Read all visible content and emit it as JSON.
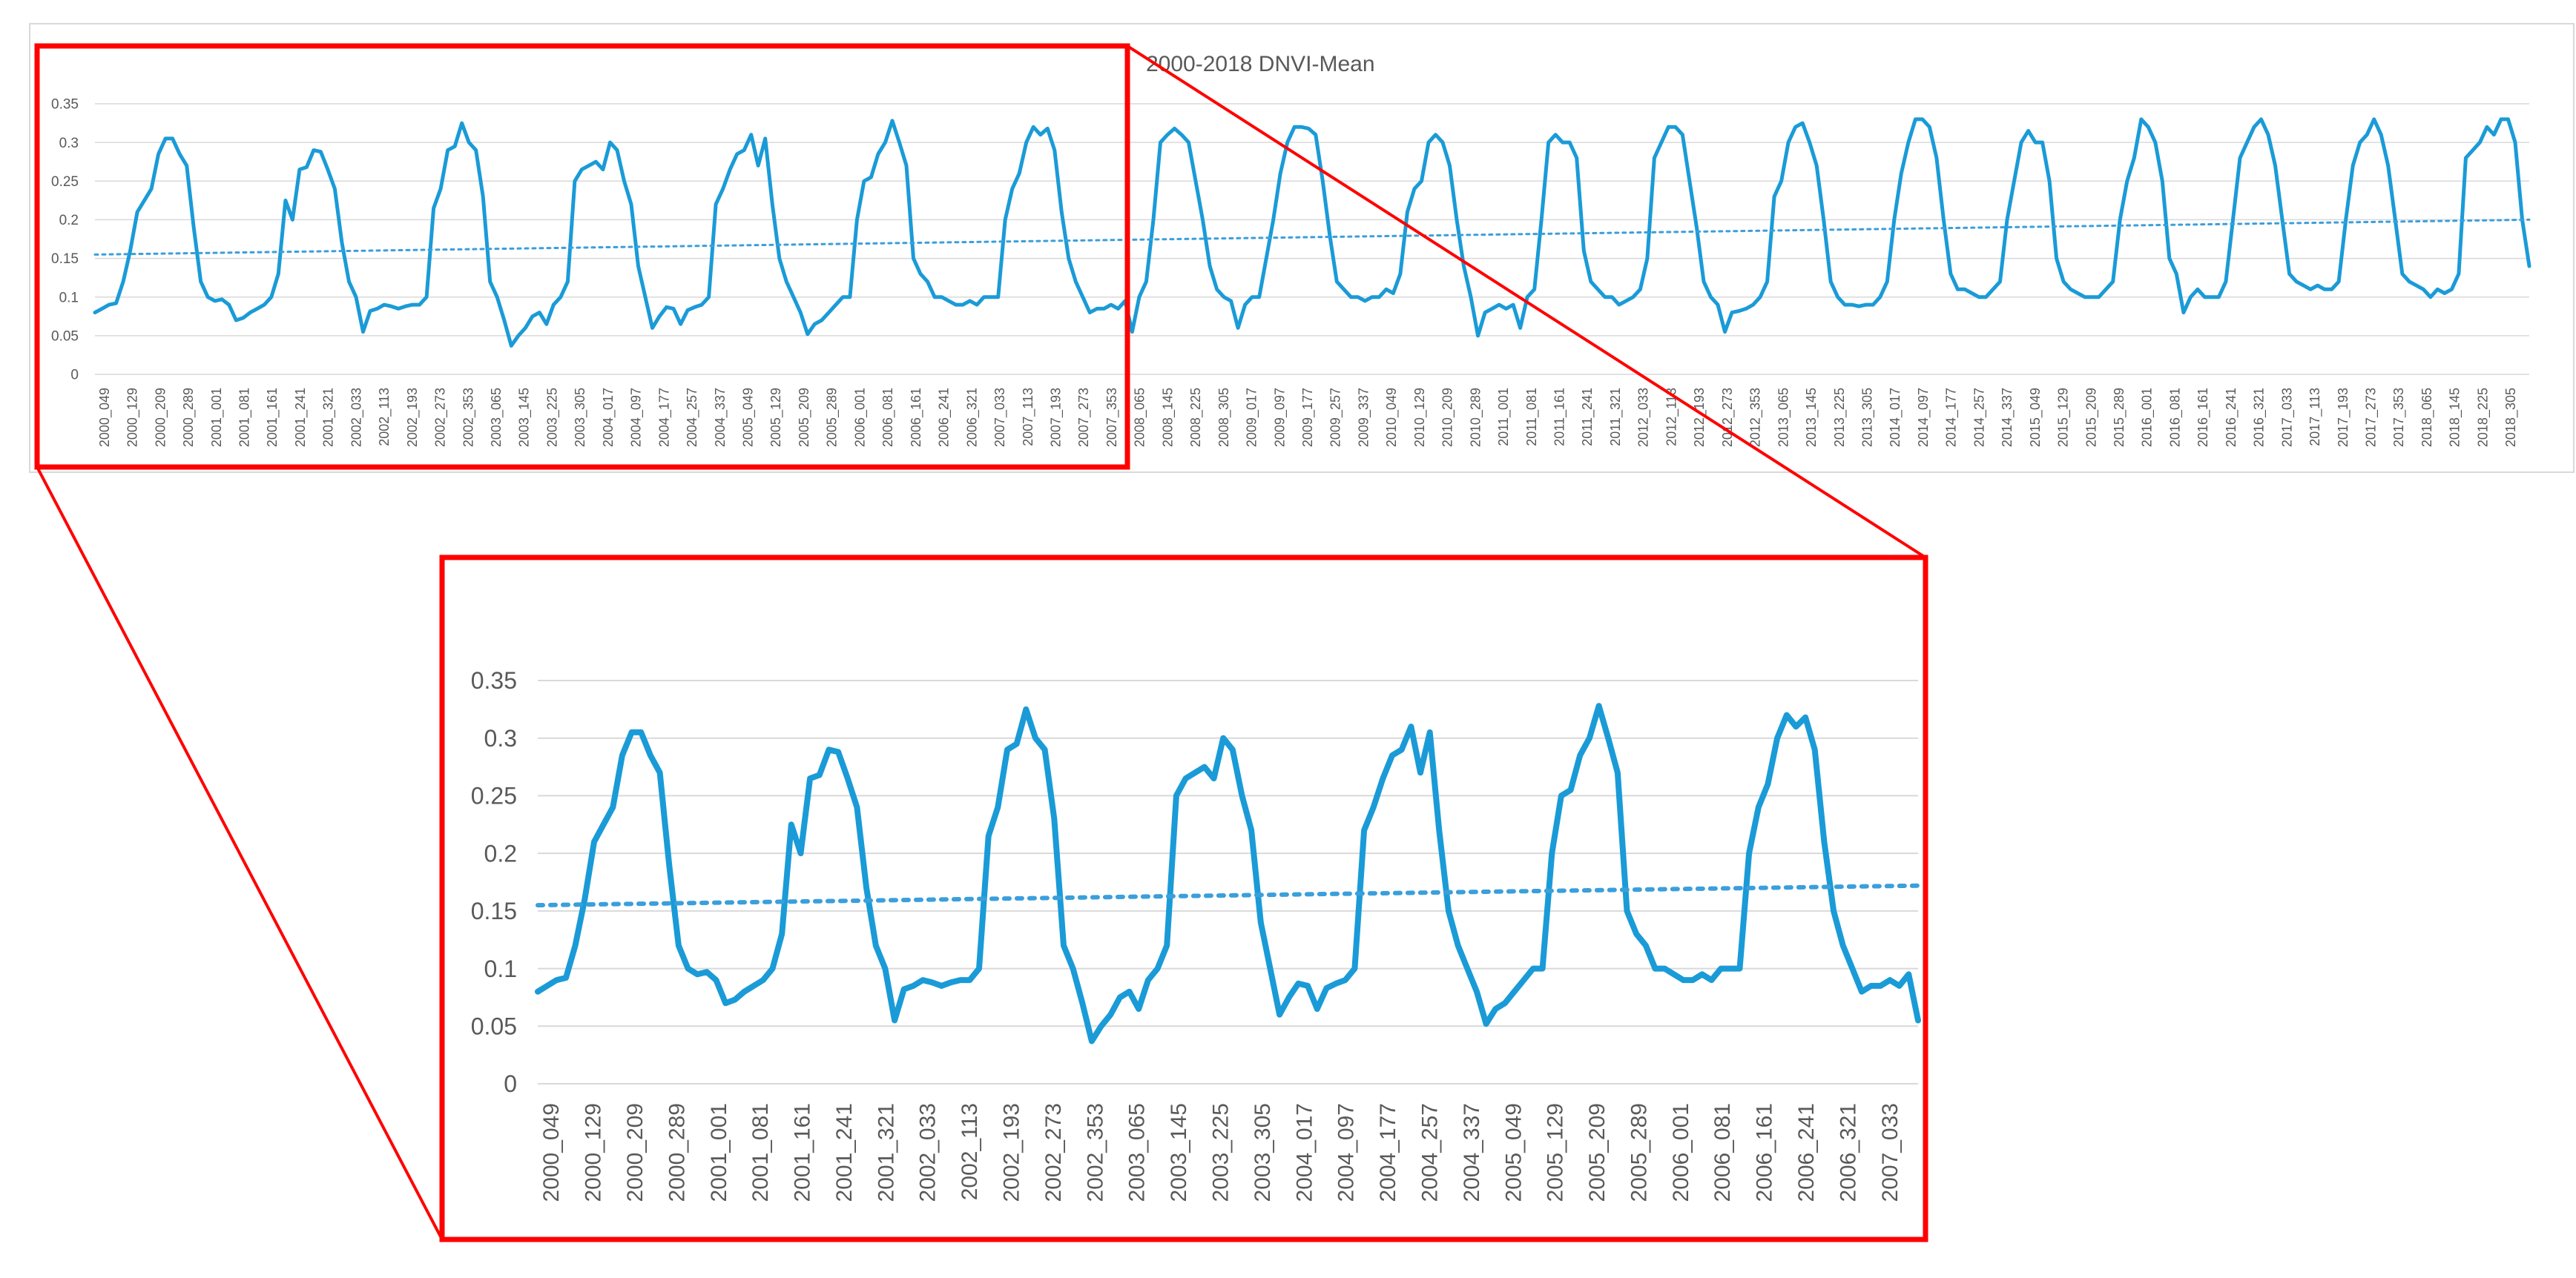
{
  "colors": {
    "series": "#1a9bd7",
    "trend": "#3a9fdb",
    "highlight": "#ff0000",
    "grid": "#d9d9d9",
    "text": "#595959"
  },
  "chart_data": [
    {
      "id": "overview",
      "type": "line",
      "title": "2000-2018 DNVI-Mean",
      "ylim": [
        0,
        0.35
      ],
      "yticks": [
        "0",
        "0.05",
        "0.1",
        "0.15",
        "0.2",
        "0.25",
        "0.3",
        "0.35"
      ],
      "grid": true,
      "legend": "none",
      "x_start": "2000_049",
      "x_end": "2018_305",
      "x_tick_labels": [
        "2000_049",
        "2000_129",
        "2000_209",
        "2000_289",
        "2001_001",
        "2001_081",
        "2001_161",
        "2001_241",
        "2001_321",
        "2002_033",
        "2002_113",
        "2002_193",
        "2002_273",
        "2002_353",
        "2003_065",
        "2003_145",
        "2003_225",
        "2003_305",
        "2004_017",
        "2004_097",
        "2004_177",
        "2004_257",
        "2004_337",
        "2005_049",
        "2005_129",
        "2005_209",
        "2005_289",
        "2006_001",
        "2006_081",
        "2006_161",
        "2006_241",
        "2006_321",
        "2007_033",
        "2007_113",
        "2007_193",
        "2007_273",
        "2007_353",
        "2008_065",
        "2008_145",
        "2008_225",
        "2008_305",
        "2009_017",
        "2009_097",
        "2009_177",
        "2009_257",
        "2009_337",
        "2010_049",
        "2010_129",
        "2010_209",
        "2010_289",
        "2011_001",
        "2011_081",
        "2011_161",
        "2011_241",
        "2011_321",
        "2012_033",
        "2012_113",
        "2012_193",
        "2012_273",
        "2012_353",
        "2013_065",
        "2013_145",
        "2013_225",
        "2013_305",
        "2014_017",
        "2014_097",
        "2014_177",
        "2014_257",
        "2014_337",
        "2015_049",
        "2015_129",
        "2015_209",
        "2015_289",
        "2016_001",
        "2016_081",
        "2016_161",
        "2016_241",
        "2016_321",
        "2017_033",
        "2017_113",
        "2017_193",
        "2017_273",
        "2017_353",
        "2018_065",
        "2018_145",
        "2018_225",
        "2018_305"
      ],
      "series": [
        {
          "values": [
            0.08,
            0.085,
            0.09,
            0.092,
            0.12,
            0.16,
            0.21,
            0.225,
            0.24,
            0.285,
            0.305,
            0.305,
            0.285,
            0.27,
            0.19,
            0.12,
            0.1,
            0.095,
            0.097,
            0.09,
            0.07,
            0.073,
            0.08,
            0.085,
            0.09,
            0.1,
            0.13,
            0.225,
            0.2,
            0.265,
            0.268,
            0.29,
            0.288,
            0.265,
            0.24,
            0.17,
            0.12,
            0.1,
            0.055,
            0.082,
            0.085,
            0.09,
            0.088,
            0.085,
            0.088,
            0.09,
            0.09,
            0.1,
            0.215,
            0.24,
            0.29,
            0.295,
            0.325,
            0.3,
            0.29,
            0.23,
            0.12,
            0.1,
            0.07,
            0.037,
            0.05,
            0.06,
            0.075,
            0.08,
            0.065,
            0.09,
            0.1,
            0.12,
            0.25,
            0.265,
            0.27,
            0.275,
            0.265,
            0.3,
            0.29,
            0.25,
            0.22,
            0.14,
            0.1,
            0.06,
            0.075,
            0.087,
            0.085,
            0.065,
            0.083,
            0.087,
            0.09,
            0.1,
            0.22,
            0.24,
            0.265,
            0.285,
            0.29,
            0.31,
            0.27,
            0.305,
            0.22,
            0.15,
            0.12,
            0.1,
            0.08,
            0.052,
            0.065,
            0.07,
            0.08,
            0.09,
            0.1,
            0.1,
            0.2,
            0.25,
            0.255,
            0.285,
            0.3,
            0.328,
            0.3,
            0.27,
            0.15,
            0.13,
            0.12,
            0.1,
            0.1,
            0.095,
            0.09,
            0.09,
            0.095,
            0.09,
            0.1,
            0.1,
            0.1,
            0.2,
            0.24,
            0.26,
            0.3,
            0.32,
            0.31,
            0.318,
            0.29,
            0.21,
            0.15,
            0.12,
            0.1,
            0.08,
            0.085,
            0.085,
            0.09,
            0.085,
            0.095,
            0.055,
            0.1,
            0.12,
            0.2,
            0.3,
            0.31,
            0.318,
            0.31,
            0.3,
            0.25,
            0.2,
            0.14,
            0.11,
            0.1,
            0.095,
            0.06,
            0.09,
            0.1,
            0.1,
            0.15,
            0.2,
            0.26,
            0.3,
            0.32,
            0.32,
            0.318,
            0.31,
            0.25,
            0.18,
            0.12,
            0.11,
            0.1,
            0.1,
            0.095,
            0.1,
            0.1,
            0.11,
            0.105,
            0.13,
            0.21,
            0.24,
            0.25,
            0.3,
            0.31,
            0.3,
            0.27,
            0.2,
            0.14,
            0.1,
            0.05,
            0.08,
            0.085,
            0.09,
            0.085,
            0.09,
            0.06,
            0.1,
            0.11,
            0.2,
            0.3,
            0.31,
            0.3,
            0.3,
            0.28,
            0.16,
            0.12,
            0.11,
            0.1,
            0.1,
            0.09,
            0.095,
            0.1,
            0.11,
            0.15,
            0.28,
            0.3,
            0.32,
            0.32,
            0.31,
            0.25,
            0.19,
            0.12,
            0.1,
            0.09,
            0.055,
            0.08,
            0.082,
            0.085,
            0.09,
            0.1,
            0.12,
            0.23,
            0.25,
            0.3,
            0.32,
            0.325,
            0.3,
            0.27,
            0.2,
            0.12,
            0.1,
            0.09,
            0.09,
            0.088,
            0.09,
            0.09,
            0.1,
            0.12,
            0.2,
            0.26,
            0.3,
            0.33,
            0.33,
            0.32,
            0.28,
            0.2,
            0.13,
            0.11,
            0.11,
            0.105,
            0.1,
            0.1,
            0.11,
            0.12,
            0.2,
            0.25,
            0.3,
            0.315,
            0.3,
            0.3,
            0.25,
            0.15,
            0.12,
            0.11,
            0.105,
            0.1,
            0.1,
            0.1,
            0.11,
            0.12,
            0.2,
            0.25,
            0.28,
            0.33,
            0.32,
            0.3,
            0.25,
            0.15,
            0.13,
            0.08,
            0.1,
            0.11,
            0.1,
            0.1,
            0.1,
            0.12,
            0.2,
            0.28,
            0.3,
            0.32,
            0.33,
            0.31,
            0.27,
            0.2,
            0.13,
            0.12,
            0.115,
            0.11,
            0.115,
            0.11,
            0.11,
            0.12,
            0.2,
            0.27,
            0.3,
            0.31,
            0.33,
            0.31,
            0.27,
            0.2,
            0.13,
            0.12,
            0.115,
            0.11,
            0.1,
            0.11,
            0.105,
            0.11,
            0.13,
            0.28,
            0.29,
            0.3,
            0.32,
            0.31,
            0.33,
            0.33,
            0.3,
            0.2,
            0.14
          ]
        },
        {
          "name": "",
          "line": "trend",
          "values": [
            0.155,
            0.2
          ]
        }
      ]
    },
    {
      "id": "zoom",
      "type": "line",
      "title": "",
      "ylim": [
        0,
        0.35
      ],
      "yticks": [
        "0",
        "0.05",
        "0.1",
        "0.15",
        "0.2",
        "0.25",
        "0.3",
        "0.35"
      ],
      "grid": true,
      "legend": "none",
      "x_start": "2000_049",
      "x_end": "2007_049",
      "x_tick_labels": [
        "2000_049",
        "2000_129",
        "2000_209",
        "2000_289",
        "2001_001",
        "2001_081",
        "2001_161",
        "2001_241",
        "2001_321",
        "2002_033",
        "2002_113",
        "2002_193",
        "2002_273",
        "2002_353",
        "2003_065",
        "2003_145",
        "2003_225",
        "2003_305",
        "2004_017",
        "2004_097",
        "2004_177",
        "2004_257",
        "2004_337",
        "2005_049",
        "2005_129",
        "2005_209",
        "2005_289",
        "2006_001",
        "2006_081",
        "2006_161",
        "2006_241",
        "2006_321",
        "2007_033"
      ],
      "series": [
        {
          "values": [
            0.08,
            0.085,
            0.09,
            0.092,
            0.12,
            0.16,
            0.21,
            0.225,
            0.24,
            0.285,
            0.305,
            0.305,
            0.285,
            0.27,
            0.19,
            0.12,
            0.1,
            0.095,
            0.097,
            0.09,
            0.07,
            0.073,
            0.08,
            0.085,
            0.09,
            0.1,
            0.13,
            0.225,
            0.2,
            0.265,
            0.268,
            0.29,
            0.288,
            0.265,
            0.24,
            0.17,
            0.12,
            0.1,
            0.055,
            0.082,
            0.085,
            0.09,
            0.088,
            0.085,
            0.088,
            0.09,
            0.09,
            0.1,
            0.215,
            0.24,
            0.29,
            0.295,
            0.325,
            0.3,
            0.29,
            0.23,
            0.12,
            0.1,
            0.07,
            0.037,
            0.05,
            0.06,
            0.075,
            0.08,
            0.065,
            0.09,
            0.1,
            0.12,
            0.25,
            0.265,
            0.27,
            0.275,
            0.265,
            0.3,
            0.29,
            0.25,
            0.22,
            0.14,
            0.1,
            0.06,
            0.075,
            0.087,
            0.085,
            0.065,
            0.083,
            0.087,
            0.09,
            0.1,
            0.22,
            0.24,
            0.265,
            0.285,
            0.29,
            0.31,
            0.27,
            0.305,
            0.22,
            0.15,
            0.12,
            0.1,
            0.08,
            0.052,
            0.065,
            0.07,
            0.08,
            0.09,
            0.1,
            0.1,
            0.2,
            0.25,
            0.255,
            0.285,
            0.3,
            0.328,
            0.3,
            0.27,
            0.15,
            0.13,
            0.12,
            0.1,
            0.1,
            0.095,
            0.09,
            0.09,
            0.095,
            0.09,
            0.1,
            0.1,
            0.1,
            0.2,
            0.24,
            0.26,
            0.3,
            0.32,
            0.31,
            0.318,
            0.29,
            0.21,
            0.15,
            0.12,
            0.1,
            0.08,
            0.085,
            0.085,
            0.09,
            0.085,
            0.095,
            0.055
          ]
        },
        {
          "name": "",
          "line": "trend",
          "values": [
            0.155,
            0.172
          ]
        }
      ]
    }
  ]
}
